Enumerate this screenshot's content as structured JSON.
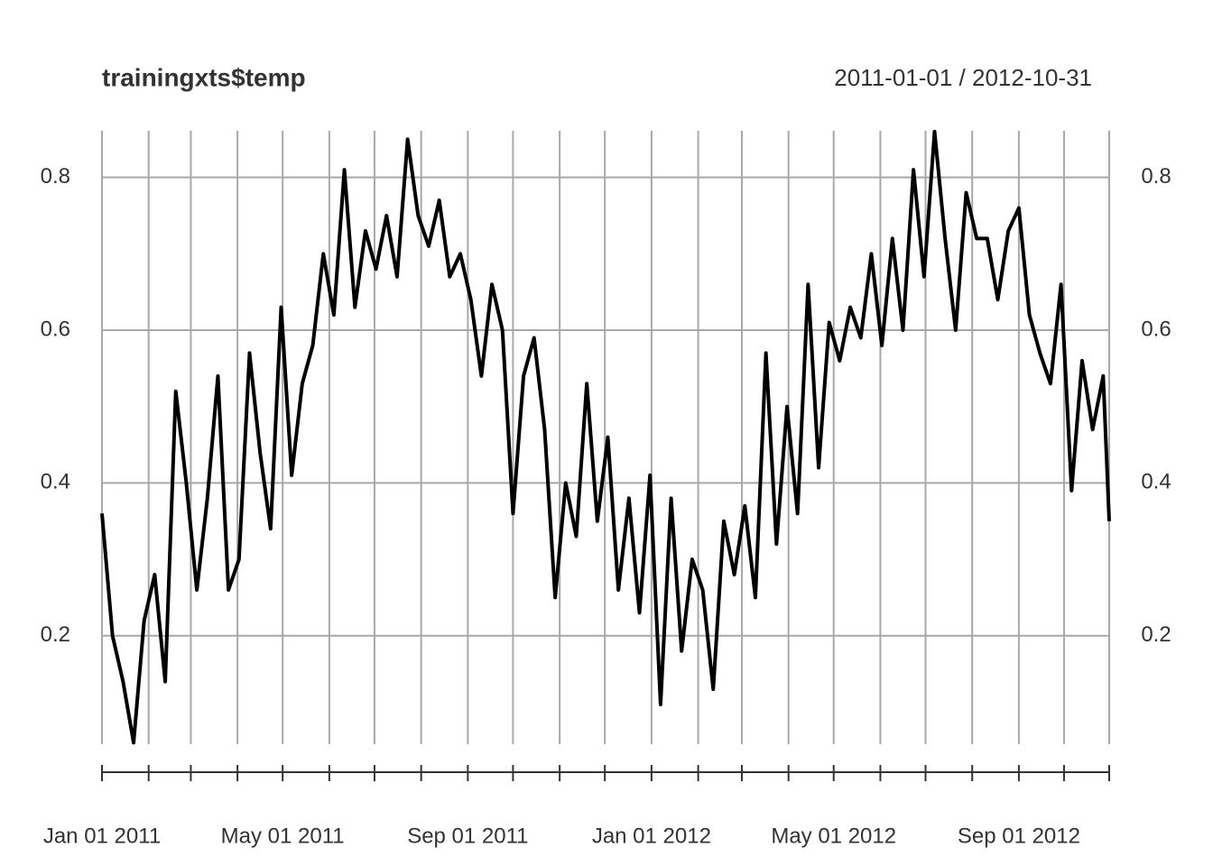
{
  "chart_data": {
    "type": "line",
    "title": "trainingxts$temp",
    "subtitle": "2011-01-01 / 2012-10-31",
    "x": [
      "2011-01-01",
      "2011-01-08",
      "2011-01-15",
      "2011-01-22",
      "2011-01-29",
      "2011-02-05",
      "2011-02-12",
      "2011-02-19",
      "2011-02-26",
      "2011-03-05",
      "2011-03-12",
      "2011-03-19",
      "2011-03-26",
      "2011-04-02",
      "2011-04-09",
      "2011-04-16",
      "2011-04-23",
      "2011-04-30",
      "2011-05-07",
      "2011-05-14",
      "2011-05-21",
      "2011-05-28",
      "2011-06-04",
      "2011-06-11",
      "2011-06-18",
      "2011-06-25",
      "2011-07-02",
      "2011-07-09",
      "2011-07-16",
      "2011-07-23",
      "2011-07-30",
      "2011-08-06",
      "2011-08-13",
      "2011-08-20",
      "2011-08-27",
      "2011-09-03",
      "2011-09-10",
      "2011-09-17",
      "2011-09-24",
      "2011-10-01",
      "2011-10-08",
      "2011-10-15",
      "2011-10-22",
      "2011-10-29",
      "2011-11-05",
      "2011-11-12",
      "2011-11-19",
      "2011-11-26",
      "2011-12-03",
      "2011-12-10",
      "2011-12-17",
      "2011-12-24",
      "2011-12-31",
      "2012-01-07",
      "2012-01-14",
      "2012-01-21",
      "2012-01-28",
      "2012-02-04",
      "2012-02-11",
      "2012-02-18",
      "2012-02-25",
      "2012-03-03",
      "2012-03-10",
      "2012-03-17",
      "2012-03-24",
      "2012-03-31",
      "2012-04-07",
      "2012-04-14",
      "2012-04-21",
      "2012-04-28",
      "2012-05-05",
      "2012-05-12",
      "2012-05-19",
      "2012-05-26",
      "2012-06-02",
      "2012-06-09",
      "2012-06-16",
      "2012-06-23",
      "2012-06-30",
      "2012-07-07",
      "2012-07-14",
      "2012-07-21",
      "2012-07-28",
      "2012-08-04",
      "2012-08-11",
      "2012-08-18",
      "2012-08-25",
      "2012-09-01",
      "2012-09-08",
      "2012-09-15",
      "2012-09-22",
      "2012-09-29",
      "2012-10-06",
      "2012-10-13",
      "2012-10-20",
      "2012-10-27",
      "2012-10-31"
    ],
    "series": [
      {
        "name": "temp",
        "color": "#000000",
        "values": [
          0.36,
          0.2,
          0.14,
          0.06,
          0.22,
          0.28,
          0.14,
          0.52,
          0.4,
          0.26,
          0.38,
          0.54,
          0.26,
          0.3,
          0.57,
          0.44,
          0.34,
          0.63,
          0.41,
          0.53,
          0.58,
          0.7,
          0.62,
          0.81,
          0.63,
          0.73,
          0.68,
          0.75,
          0.67,
          0.85,
          0.75,
          0.71,
          0.77,
          0.67,
          0.7,
          0.64,
          0.54,
          0.66,
          0.6,
          0.36,
          0.54,
          0.59,
          0.47,
          0.25,
          0.4,
          0.33,
          0.53,
          0.35,
          0.46,
          0.26,
          0.38,
          0.23,
          0.41,
          0.11,
          0.38,
          0.18,
          0.3,
          0.26,
          0.13,
          0.35,
          0.28,
          0.37,
          0.25,
          0.57,
          0.32,
          0.5,
          0.36,
          0.66,
          0.42,
          0.61,
          0.56,
          0.63,
          0.59,
          0.7,
          0.58,
          0.72,
          0.6,
          0.81,
          0.67,
          0.86,
          0.72,
          0.6,
          0.78,
          0.72,
          0.72,
          0.64,
          0.73,
          0.76,
          0.62,
          0.57,
          0.53,
          0.66,
          0.39,
          0.56,
          0.47,
          0.54,
          0.35
        ]
      }
    ],
    "xlim": [
      "2011-01-01",
      "2012-10-31"
    ],
    "xticks": [
      {
        "value": "2011-01-01",
        "label": "Jan 01 2011"
      },
      "2011-02-01",
      "2011-03-01",
      "2011-04-01",
      {
        "value": "2011-05-01",
        "label": "May 01 2011"
      },
      "2011-06-01",
      "2011-07-01",
      "2011-08-01",
      {
        "value": "2011-09-01",
        "label": "Sep 01 2011"
      },
      "2011-10-01",
      "2011-11-01",
      "2011-12-01",
      {
        "value": "2012-01-01",
        "label": "Jan 01 2012"
      },
      "2012-02-01",
      "2012-03-01",
      "2012-04-01",
      {
        "value": "2012-05-01",
        "label": "May 01 2012"
      },
      "2012-06-01",
      "2012-07-01",
      "2012-08-01",
      {
        "value": "2012-09-01",
        "label": "Sep 01 2012"
      },
      "2012-10-01",
      "2012-10-31"
    ],
    "ylim": [
      0.058,
      0.861
    ],
    "yticks": [
      0.2,
      0.4,
      0.6,
      0.8
    ],
    "grid": true
  }
}
